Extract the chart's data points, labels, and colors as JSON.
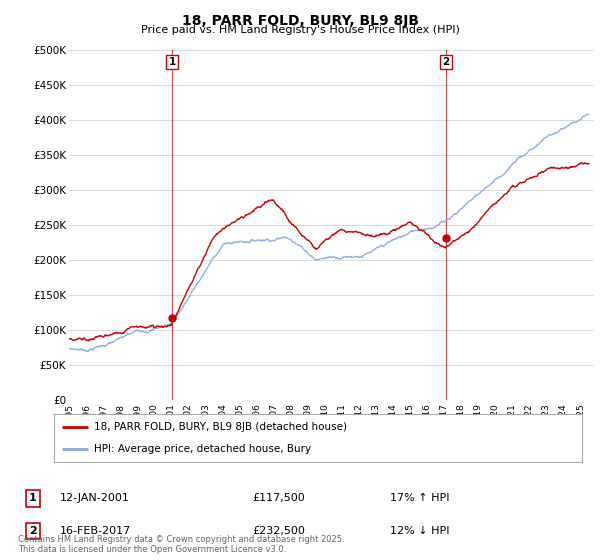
{
  "title": "18, PARR FOLD, BURY, BL9 8JB",
  "subtitle": "Price paid vs. HM Land Registry's House Price Index (HPI)",
  "ylabel_ticks": [
    "£0",
    "£50K",
    "£100K",
    "£150K",
    "£200K",
    "£250K",
    "£300K",
    "£350K",
    "£400K",
    "£450K",
    "£500K"
  ],
  "ylim": [
    0,
    500000
  ],
  "yticks": [
    0,
    50000,
    100000,
    150000,
    200000,
    250000,
    300000,
    350000,
    400000,
    450000,
    500000
  ],
  "sale1_x": 2001.04,
  "sale1_y": 117500,
  "sale2_x": 2017.12,
  "sale2_y": 232500,
  "sale1_label": "12-JAN-2001",
  "sale1_price": "£117,500",
  "sale1_hpi": "17% ↑ HPI",
  "sale2_label": "16-FEB-2017",
  "sale2_price": "£232,500",
  "sale2_hpi": "12% ↓ HPI",
  "legend_line1": "18, PARR FOLD, BURY, BL9 8JB (detached house)",
  "legend_line2": "HPI: Average price, detached house, Bury",
  "footer": "Contains HM Land Registry data © Crown copyright and database right 2025.\nThis data is licensed under the Open Government Licence v3.0.",
  "line_color_price": "#cc0000",
  "line_color_hpi": "#88aadd",
  "vline_color": "#cc0000",
  "background_color": "#ffffff",
  "grid_color": "#cccccc",
  "xlim_start": 1995,
  "xlim_end": 2025.8
}
